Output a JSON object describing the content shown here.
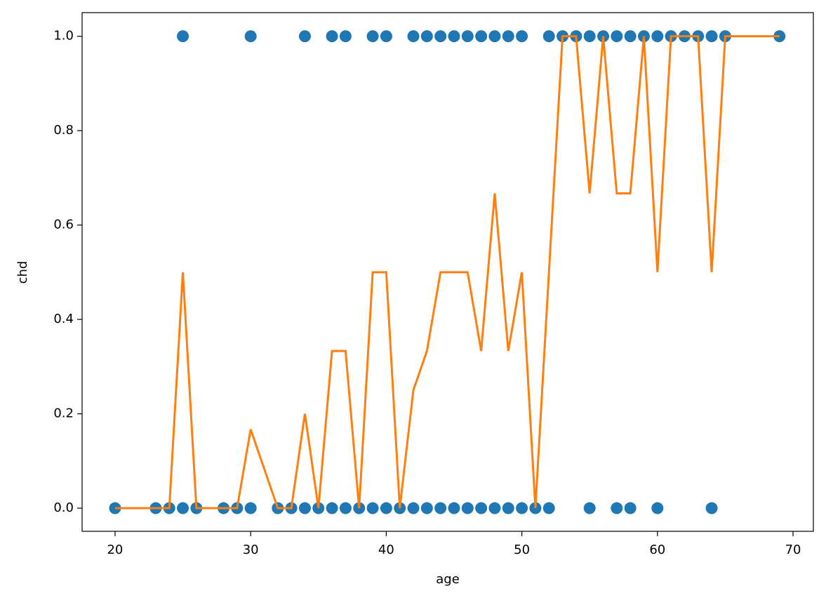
{
  "chart_data": {
    "type": "scatter",
    "x_label": "age",
    "y_label": "chd",
    "xlim": [
      17.57,
      71.5
    ],
    "ylim": [
      -0.049,
      1.05
    ],
    "xticks": [
      20,
      30,
      40,
      50,
      60,
      70
    ],
    "yticks": [
      {
        "value": 0,
        "label": "0.0"
      },
      0.2,
      0.4,
      0.6,
      0.8,
      {
        "value": 1,
        "label": "1.0"
      }
    ],
    "series": [
      {
        "type": "scatter",
        "color": "#1f77b4",
        "x": [
          25,
          30,
          34,
          36,
          37,
          39,
          40,
          42,
          43,
          44,
          45,
          46,
          47,
          48,
          49,
          50,
          52,
          53,
          54,
          55,
          56,
          57,
          58,
          59,
          60,
          61,
          62,
          63,
          64,
          65,
          69,
          20,
          23,
          24,
          25,
          26,
          28,
          29,
          30,
          32,
          33,
          34,
          35,
          36,
          37,
          38,
          39,
          40,
          41,
          42,
          43,
          44,
          45,
          46,
          47,
          48,
          49,
          50,
          51,
          52,
          55,
          57,
          58,
          60,
          64
        ],
        "values": [
          1,
          1,
          1,
          1,
          1,
          1,
          1,
          1,
          1,
          1,
          1,
          1,
          1,
          1,
          1,
          1,
          1,
          1,
          1,
          1,
          1,
          1,
          1,
          1,
          1,
          1,
          1,
          1,
          1,
          1,
          1,
          0,
          0,
          0,
          0,
          0,
          0,
          0,
          0,
          0,
          0,
          0,
          0,
          0,
          0,
          0,
          0,
          0,
          0,
          0,
          0,
          0,
          0,
          0,
          0,
          0,
          0,
          0,
          0,
          0,
          0,
          0,
          0,
          0,
          0
        ]
      },
      {
        "type": "line",
        "color": "#ff7f0e",
        "x": [
          20,
          23,
          24,
          25,
          26,
          28,
          29,
          30,
          32,
          33,
          34,
          35,
          36,
          37,
          38,
          39,
          40,
          41,
          42,
          43,
          44,
          45,
          46,
          47,
          48,
          49,
          50,
          51,
          52,
          53,
          54,
          55,
          56,
          57,
          58,
          59,
          60,
          61,
          62,
          63,
          64,
          65,
          69
        ],
        "values": [
          0,
          0,
          0,
          0.5,
          0,
          0,
          0,
          0.167,
          0,
          0,
          0.2,
          0,
          0.333,
          0.333,
          0,
          0.5,
          0.5,
          0,
          0.25,
          0.333,
          0.5,
          0.5,
          0.5,
          0.333,
          0.667,
          0.333,
          0.5,
          0,
          0.5,
          1,
          1,
          0.667,
          1,
          0.667,
          0.667,
          1,
          0.5,
          1,
          1,
          1,
          0.5,
          1,
          1
        ]
      }
    ]
  }
}
